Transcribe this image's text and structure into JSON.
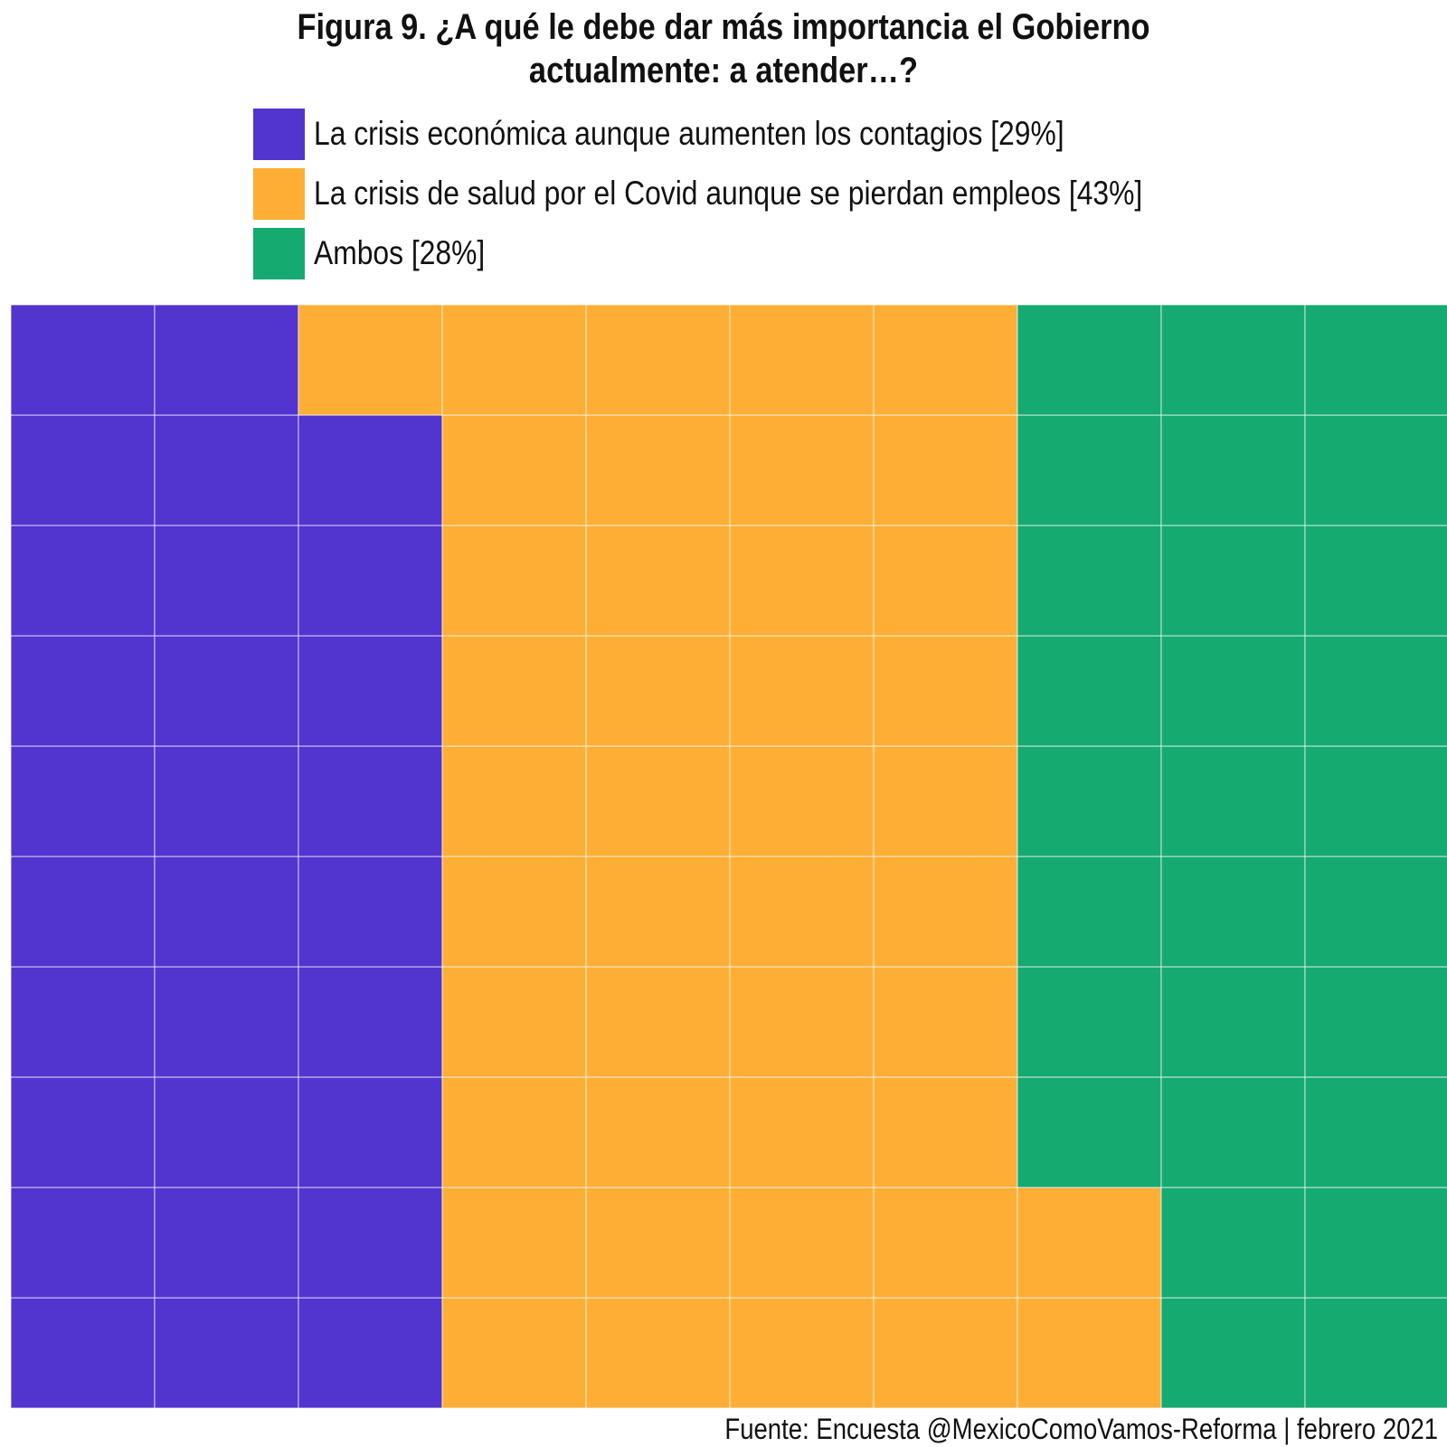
{
  "chart_data": {
    "type": "waffle",
    "title_lines": [
      "Figura 9. ¿A qué le debe dar más importancia el Gobierno",
      "actualmente: a atender…?"
    ],
    "grid": {
      "rows": 10,
      "cols": 10,
      "fill_order": "column-major-bottom-up"
    },
    "legend_position": "top",
    "series": [
      {
        "label": "La crisis económica aunque aumenten los contagios [29%]",
        "value": 29,
        "color": "#5234CF"
      },
      {
        "label": "La crisis de salud por el Covid aunque se pierdan empleos [43%]",
        "value": 43,
        "color": "#FDAE35"
      },
      {
        "label": "Ambos [28%]",
        "value": 28,
        "color": "#15AA70"
      }
    ],
    "caption": "Fuente: Encuesta @MexicoComoVamos-Reforma | febrero 2021"
  }
}
